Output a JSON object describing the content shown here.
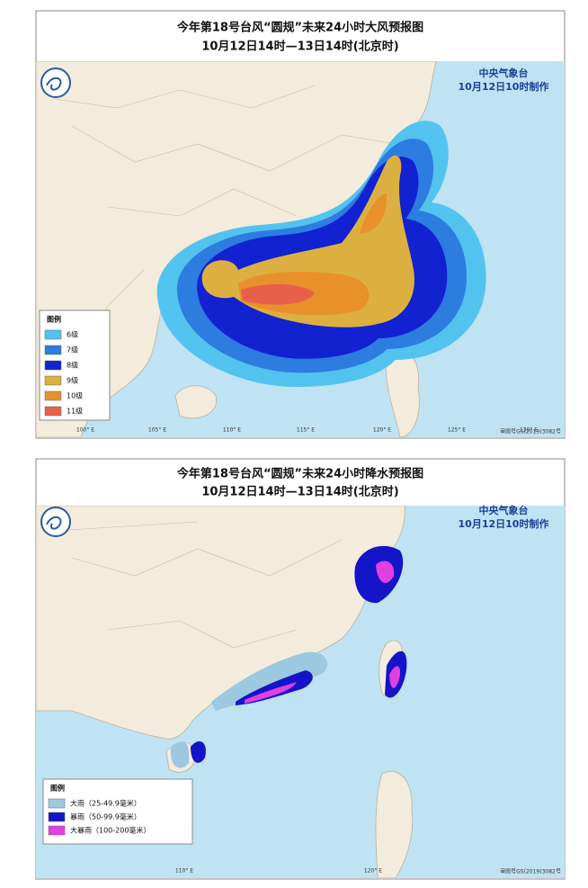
{
  "panels": [
    {
      "title": "今年第18号台风“圆规”未来24小时大风预报图",
      "subtitle": "10月12日14时—13日14时(北京时)",
      "agency": "中央气象台",
      "issued": "10月12日10时制作",
      "legend_title": "图例",
      "legend": [
        {
          "label": "6级",
          "color": "#52c3ef"
        },
        {
          "label": "7级",
          "color": "#2d7ce0"
        },
        {
          "label": "8级",
          "color": "#1222d0"
        },
        {
          "label": "9级",
          "color": "#dcb040"
        },
        {
          "label": "10级",
          "color": "#e8902a"
        },
        {
          "label": "11级",
          "color": "#e8604a"
        }
      ],
      "lon_labels": [
        "100° E",
        "105° E",
        "110° E",
        "115° E",
        "120° E",
        "125° E",
        "130° E"
      ],
      "review_no": "审图号GS(2019)3082号"
    },
    {
      "title": "今年第18号台风“圆规”未来24小时降水预报图",
      "subtitle": "10月12日14时—13日14时(北京时)",
      "agency": "中央气象台",
      "issued": "10月12日10时制作",
      "legend_title": "图例",
      "legend": [
        {
          "label": "大雨（25-49.9毫米）",
          "color": "#9cc8e0"
        },
        {
          "label": "暴雨（50-99.9毫米）",
          "color": "#1414c8"
        },
        {
          "label": "大暴雨（100-200毫米）",
          "color": "#e040e0"
        }
      ],
      "lon_labels": [
        "110° E",
        "120° E"
      ],
      "review_no": "审图号GS(2019)3082号"
    }
  ]
}
